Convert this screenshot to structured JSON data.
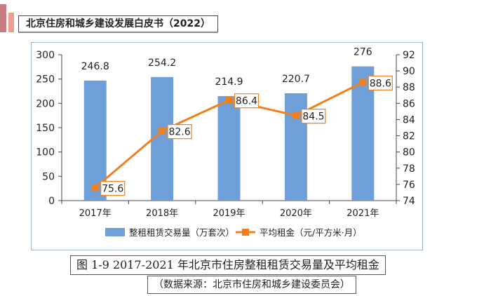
{
  "header": {
    "title": "北京住房和城乡建设发展白皮书（2022）"
  },
  "figure": {
    "caption": "图 1-9   2017-2021 年北京市住房整租租赁交易量及平均租金",
    "source": "（数据来源：北京市住房和城乡建设委员会）"
  },
  "colors": {
    "bar": "#6f9fd8",
    "line": "#f07f1e",
    "frame": "#9fb4c7"
  },
  "chart_data": {
    "type": "bar",
    "categories": [
      "2017年",
      "2018年",
      "2019年",
      "2020年",
      "2021年"
    ],
    "series": [
      {
        "name": "整租租赁交易量（万套次）",
        "type": "bar",
        "axis": "left",
        "values": [
          246.8,
          254.2,
          214.9,
          220.7,
          276
        ]
      },
      {
        "name": "平均租金（元/平方米·月）",
        "type": "line",
        "axis": "right",
        "values": [
          75.6,
          82.6,
          86.4,
          84.5,
          88.6
        ]
      }
    ],
    "y_left": {
      "min": 0,
      "max": 300,
      "step": 50,
      "ticks": [
        "0",
        "50",
        "100",
        "150",
        "200",
        "250",
        "300"
      ]
    },
    "y_right": {
      "min": 74,
      "max": 92,
      "step": 2,
      "ticks": [
        "74",
        "76",
        "78",
        "80",
        "82",
        "84",
        "86",
        "88",
        "90",
        "92"
      ]
    },
    "bar_labels": [
      "246.8",
      "254.2",
      "214.9",
      "220.7",
      "276"
    ],
    "line_labels": [
      "75.6",
      "82.6",
      "86.4",
      "84.5",
      "88.6"
    ],
    "grid": false,
    "legend_position": "bottom"
  }
}
